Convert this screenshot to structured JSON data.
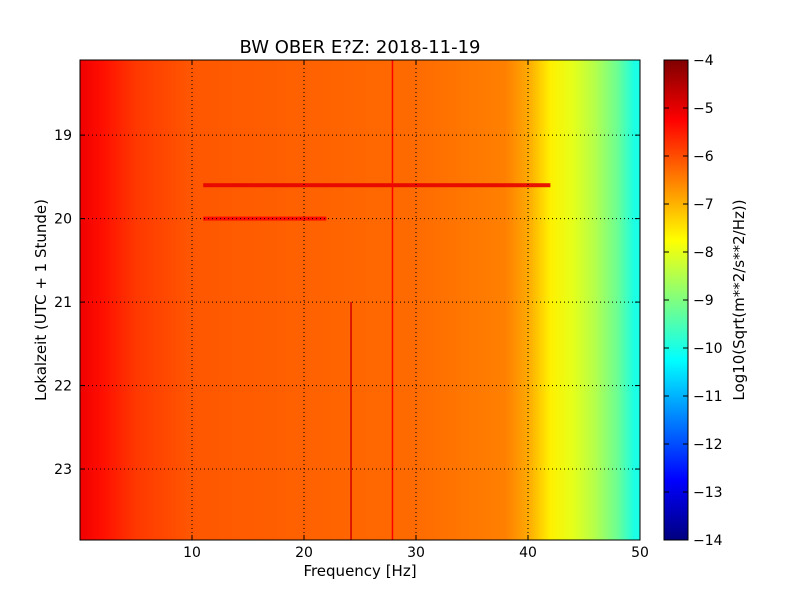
{
  "chart_data": {
    "type": "heatmap",
    "title": "BW OBER E?Z: 2018-11-19",
    "xlabel": "Frequency [Hz]",
    "ylabel": "Lokalzeit (UTC + 1 Stunde)",
    "xlim": [
      0,
      50
    ],
    "ylim": [
      18.1,
      23.85
    ],
    "x_ticks": [
      10,
      20,
      30,
      40,
      50
    ],
    "y_ticks": [
      19,
      20,
      21,
      22,
      23
    ],
    "grid": true,
    "grid_style": "dotted",
    "colormap": "jet",
    "colorbar": {
      "label": "Log10(Sqrt(m**2/s**2/Hz))",
      "range": [
        -14,
        -4
      ],
      "ticks": [
        -4,
        -5,
        -6,
        -7,
        -8,
        -9,
        -10,
        -11,
        -12,
        -13,
        -14
      ]
    },
    "level_profile": [
      {
        "f": 0,
        "v": -5.1
      },
      {
        "f": 2,
        "v": -5.4
      },
      {
        "f": 5,
        "v": -5.8
      },
      {
        "f": 10,
        "v": -6.1
      },
      {
        "f": 20,
        "v": -6.2
      },
      {
        "f": 30,
        "v": -6.3
      },
      {
        "f": 38,
        "v": -6.5
      },
      {
        "f": 40,
        "v": -6.9
      },
      {
        "f": 42,
        "v": -7.6
      },
      {
        "f": 44,
        "v": -8.0
      },
      {
        "f": 46,
        "v": -8.5
      },
      {
        "f": 48,
        "v": -9.2
      },
      {
        "f": 49.5,
        "v": -10.0
      }
    ],
    "features": [
      {
        "kind": "horizontal_band",
        "time": 19.6,
        "f_range": [
          11,
          42
        ],
        "v": -5.0
      },
      {
        "kind": "horizontal_band",
        "time": 20.0,
        "f_range": [
          11,
          22
        ],
        "v": -5.3
      },
      {
        "kind": "vertical_line",
        "f": 24.2,
        "time_range": [
          21.0,
          23.85
        ],
        "v": -4.8
      },
      {
        "kind": "vertical_line",
        "f": 27.9,
        "time_range": [
          18.1,
          23.85
        ],
        "v": -5.2
      }
    ]
  }
}
